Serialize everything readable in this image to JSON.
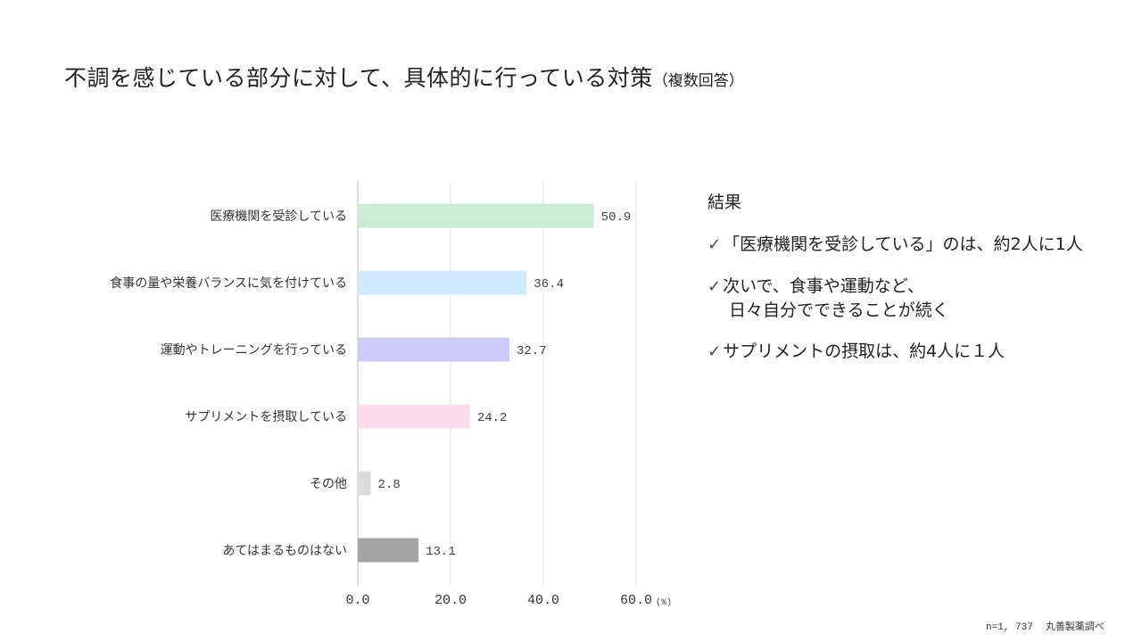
{
  "title": {
    "main": "不調を感じている部分に対して、具体的に行っている対策",
    "note": "（複数回答）"
  },
  "chart_data": {
    "type": "bar",
    "orientation": "horizontal",
    "categories": [
      "医療機関を受診している",
      "食事の量や栄養バランスに気を付けている",
      "運動やトレーニングを行っている",
      "サプリメントを摂取している",
      "その他",
      "あてはまるものはない"
    ],
    "values": [
      50.9,
      36.4,
      32.7,
      24.2,
      2.8,
      13.1
    ],
    "value_labels": [
      "50.9",
      "36.4",
      "32.7",
      "24.2",
      "2.8",
      "13.1"
    ],
    "colors": [
      "#c8ecd4",
      "#cfeafc",
      "#cccbfa",
      "#fcdcec",
      "#dcdcdc",
      "#a5a5a5"
    ],
    "x_ticks": [
      "0.0",
      "20.0",
      "40.0",
      "60.0"
    ],
    "x_unit": "(%)",
    "xlim": [
      0,
      60
    ],
    "grid": true,
    "legend": "none"
  },
  "summary": {
    "heading": "結果",
    "check_mark": "✓",
    "item1": "「医療機関を受診している」のは、約2人に1人",
    "item2_line1": "次いで、食事や運動など、",
    "item2_line2": "日々自分でできることが続く",
    "item3": "サプリメントの摂取は、約4人に１人"
  },
  "footnote": {
    "n": "n=1, 737",
    "source": "丸善製薬調べ"
  }
}
